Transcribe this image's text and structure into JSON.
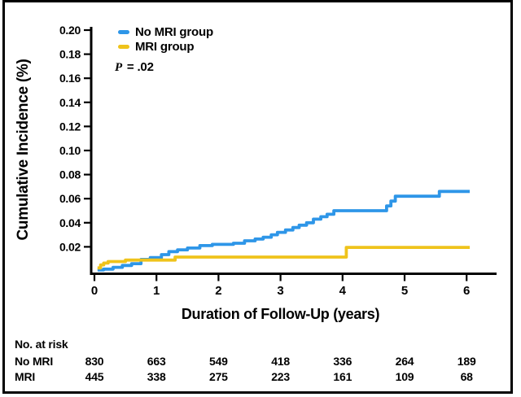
{
  "chart_data": {
    "type": "line",
    "subtype": "step-cumulative-incidence",
    "title": "",
    "xlabel": "Duration of Follow-Up (years)",
    "ylabel": "Cumulative Incidence (%)",
    "xlim": [
      0,
      6.5
    ],
    "ylim": [
      0,
      0.2
    ],
    "xticks": [
      0,
      1,
      2,
      3,
      4,
      5,
      6
    ],
    "ytick_step": 0.02,
    "ytick_labels": [
      "0.02",
      "0.04",
      "0.06",
      "0.08",
      "0.10",
      "0.12",
      "0.14",
      "0.16",
      "0.18",
      "0.20"
    ],
    "grid": false,
    "legend_position": "upper-left",
    "annotation": {
      "text_italic": "P",
      "text": " = .02"
    },
    "series": [
      {
        "name": "No MRI group",
        "color": "#2E96E8",
        "start": [
          0.05,
          0.0008
        ],
        "end_x": 6.05,
        "steps": [
          [
            0.15,
            0.0015
          ],
          [
            0.3,
            0.003
          ],
          [
            0.45,
            0.0045
          ],
          [
            0.6,
            0.006
          ],
          [
            0.75,
            0.0095
          ],
          [
            0.9,
            0.011
          ],
          [
            1.08,
            0.0135
          ],
          [
            1.2,
            0.016
          ],
          [
            1.34,
            0.0175
          ],
          [
            1.5,
            0.019
          ],
          [
            1.7,
            0.021
          ],
          [
            1.9,
            0.022
          ],
          [
            2.24,
            0.023
          ],
          [
            2.42,
            0.025
          ],
          [
            2.59,
            0.0265
          ],
          [
            2.72,
            0.028
          ],
          [
            2.85,
            0.03
          ],
          [
            2.95,
            0.032
          ],
          [
            3.08,
            0.034
          ],
          [
            3.2,
            0.036
          ],
          [
            3.3,
            0.038
          ],
          [
            3.42,
            0.04
          ],
          [
            3.53,
            0.043
          ],
          [
            3.65,
            0.045
          ],
          [
            3.75,
            0.047
          ],
          [
            3.86,
            0.05
          ],
          [
            4.71,
            0.054
          ],
          [
            4.78,
            0.058
          ],
          [
            4.85,
            0.062
          ],
          [
            5.56,
            0.066
          ]
        ]
      },
      {
        "name": "MRI group",
        "color": "#EFC31B",
        "start": [
          0.05,
          0.0025
        ],
        "end_x": 6.05,
        "steps": [
          [
            0.1,
            0.005
          ],
          [
            0.15,
            0.0065
          ],
          [
            0.22,
            0.0078
          ],
          [
            0.5,
            0.009
          ],
          [
            1.3,
            0.0115
          ],
          [
            4.06,
            0.0195
          ]
        ]
      }
    ],
    "at_risk": {
      "title": "No. at risk",
      "time_points": [
        0,
        1,
        2,
        3,
        4,
        5,
        6
      ],
      "rows": [
        {
          "label": "No MRI",
          "values": [
            "830",
            "663",
            "549",
            "418",
            "336",
            "264",
            "189"
          ]
        },
        {
          "label": "MRI",
          "values": [
            "445",
            "338",
            "275",
            "223",
            "161",
            "109",
            "68"
          ]
        }
      ]
    }
  },
  "legend": {
    "items": [
      {
        "label": "No MRI group",
        "color": "#2E96E8"
      },
      {
        "label": "MRI group",
        "color": "#EFC31B"
      }
    ]
  }
}
